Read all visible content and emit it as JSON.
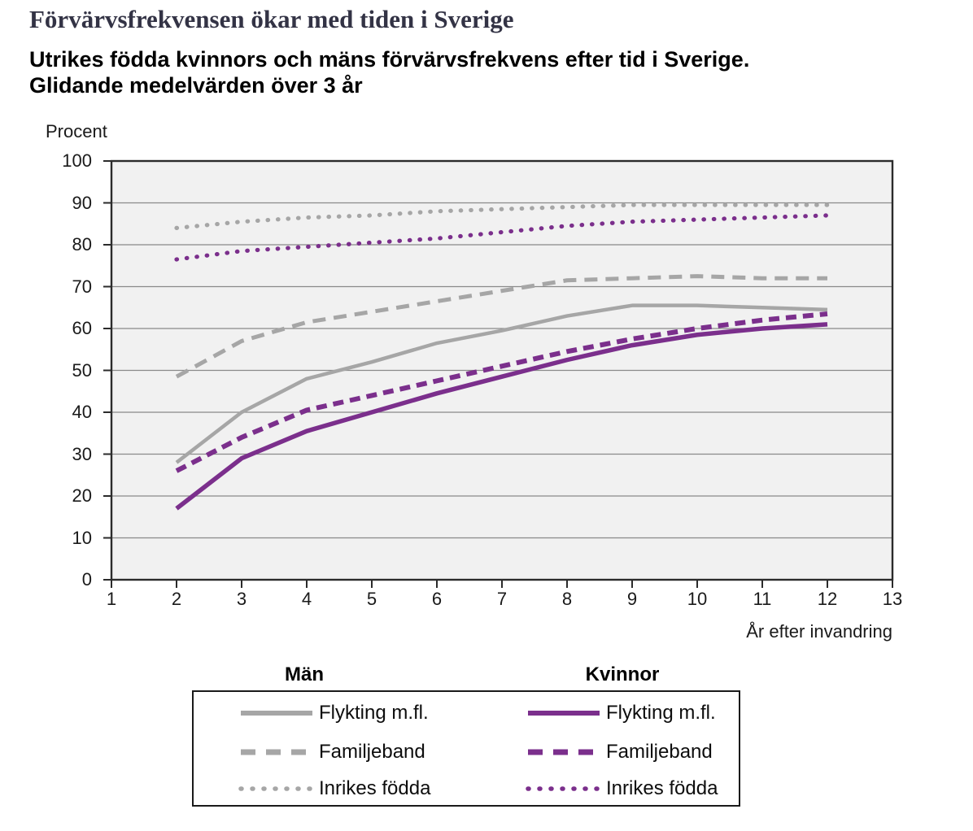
{
  "header": {
    "title": "Förvärvsfrekvensen ökar med tiden i Sverige",
    "subtitle": "Utrikes födda kvinnors och mäns förvärvsfrekvens efter tid i Sverige. Glidande medelvärden över 3 år"
  },
  "colors": {
    "men": "#a6a6a6",
    "women": "#7b2f8c",
    "grid": "#8a8a8a",
    "plot_background": "#f1f1f1",
    "plot_border": "#2b2b2b",
    "title_text": "#333345"
  },
  "chart_data": {
    "type": "line",
    "title": "Utrikes födda kvinnors och mäns förvärvsfrekvens efter tid i Sverige. Glidande medelvärden över 3 år",
    "ylabel": "Procent",
    "xlabel": "År efter invandring",
    "xlim": [
      1,
      13
    ],
    "ylim": [
      0,
      100
    ],
    "xticks": [
      1,
      2,
      3,
      4,
      5,
      6,
      7,
      8,
      9,
      10,
      11,
      12,
      13
    ],
    "yticks": [
      0,
      10,
      20,
      30,
      40,
      50,
      60,
      70,
      80,
      90,
      100
    ],
    "grid": true,
    "legend_position": "bottom",
    "x": [
      2,
      3,
      4,
      5,
      6,
      7,
      8,
      9,
      10,
      11,
      12
    ],
    "series": [
      {
        "group": "Män",
        "label": "Flykting m.fl.",
        "style": "solid",
        "color": "#a6a6a6",
        "values": [
          28,
          40,
          48,
          52,
          56.5,
          59.5,
          63,
          65.5,
          65.5,
          65,
          64.5
        ]
      },
      {
        "group": "Män",
        "label": "Familjeband",
        "style": "dashed",
        "color": "#a6a6a6",
        "values": [
          48.5,
          57,
          61.5,
          64,
          66.5,
          69,
          71.5,
          72,
          72.5,
          72,
          72
        ]
      },
      {
        "group": "Män",
        "label": "Inrikes födda",
        "style": "dotted",
        "color": "#a6a6a6",
        "values": [
          84,
          85.5,
          86.5,
          87,
          88,
          88.5,
          89,
          89.5,
          89.5,
          89.5,
          89.5
        ]
      },
      {
        "group": "Kvinnor",
        "label": "Flykting m.fl.",
        "style": "solid",
        "color": "#7b2f8c",
        "values": [
          17,
          29,
          35.5,
          40,
          44.5,
          48.5,
          52.5,
          56,
          58.5,
          60,
          61
        ]
      },
      {
        "group": "Kvinnor",
        "label": "Familjeband",
        "style": "dashed",
        "color": "#7b2f8c",
        "values": [
          26,
          34,
          40.5,
          44,
          47.5,
          51,
          54.5,
          57.5,
          60,
          62,
          63.5
        ]
      },
      {
        "group": "Kvinnor",
        "label": "Inrikes födda",
        "style": "dotted",
        "color": "#7b2f8c",
        "values": [
          76.5,
          78.5,
          79.5,
          80.5,
          81.5,
          83,
          84.5,
          85.5,
          86,
          86.5,
          87
        ]
      }
    ],
    "legend": {
      "columns": [
        {
          "header": "Män",
          "color": "#a6a6a6",
          "items": [
            {
              "label": "Flykting m.fl.",
              "style": "solid"
            },
            {
              "label": "Familjeband",
              "style": "dashed"
            },
            {
              "label": "Inrikes födda",
              "style": "dotted"
            }
          ]
        },
        {
          "header": "Kvinnor",
          "color": "#7b2f8c",
          "items": [
            {
              "label": "Flykting m.fl.",
              "style": "solid"
            },
            {
              "label": "Familjeband",
              "style": "dashed"
            },
            {
              "label": "Inrikes födda",
              "style": "dotted"
            }
          ]
        }
      ]
    }
  }
}
